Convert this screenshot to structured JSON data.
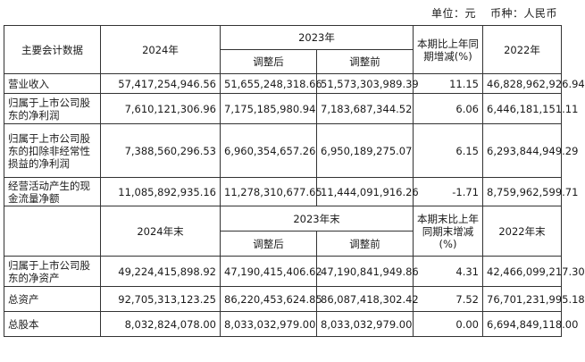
{
  "unit_line": {
    "unit": "单位：元",
    "currency": "币种：人民币"
  },
  "header1": {
    "item": "主要会计数据",
    "y2024": "2024年",
    "y2023": "2023年",
    "adjusted": "调整后",
    "before_adjust": "调整前",
    "change": "本期比上年同期增减(%)",
    "y2022": "2022年"
  },
  "rows1": [
    {
      "label": "营业收入",
      "v2024": "57,417,254,946.56",
      "adj": "51,655,248,318.66",
      "pre": "51,573,303,989.39",
      "chg": "11.15",
      "v2022": "46,828,962,926.94"
    },
    {
      "label": "归属于上市公司股东的净利润",
      "v2024": "7,610,121,306.96",
      "adj": "7,175,185,980.94",
      "pre": "7,183,687,344.52",
      "chg": "6.06",
      "v2022": "6,446,181,151.11"
    },
    {
      "label": "归属于上市公司股东的扣除非经常性损益的净利润",
      "v2024": "7,388,560,296.53",
      "adj": "6,960,354,657.26",
      "pre": "6,950,189,275.07",
      "chg": "6.15",
      "v2022": "6,293,844,949.29"
    },
    {
      "label": "经营活动产生的现金流量净额",
      "v2024": "11,085,892,935.16",
      "adj": "11,278,310,677.65",
      "pre": "11,444,091,916.26",
      "chg": "-1.71",
      "v2022": "8,759,962,599.71"
    }
  ],
  "header2": {
    "y2024end": "2024年末",
    "y2023end": "2023年末",
    "adjusted": "调整后",
    "before_adjust": "调整前",
    "change": "本期末比上年同期末增减(%)",
    "y2022end": "2022年末"
  },
  "rows2": [
    {
      "label": "归属于上市公司股东的净资产",
      "v2024": "49,224,415,898.92",
      "adj": "47,190,415,406.62",
      "pre": "47,190,841,949.86",
      "chg": "4.31",
      "v2022": "42,466,099,217.30"
    },
    {
      "label": "总资产",
      "v2024": "92,705,313,123.25",
      "adj": "86,220,453,624.85",
      "pre": "86,087,418,302.42",
      "chg": "7.52",
      "v2022": "76,701,231,995.18"
    },
    {
      "label": "总股本",
      "v2024": "8,032,824,078.00",
      "adj": "8,033,032,979.00",
      "pre": "8,033,032,979.00",
      "chg": "0.00",
      "v2022": "6,694,849,118.00"
    }
  ]
}
